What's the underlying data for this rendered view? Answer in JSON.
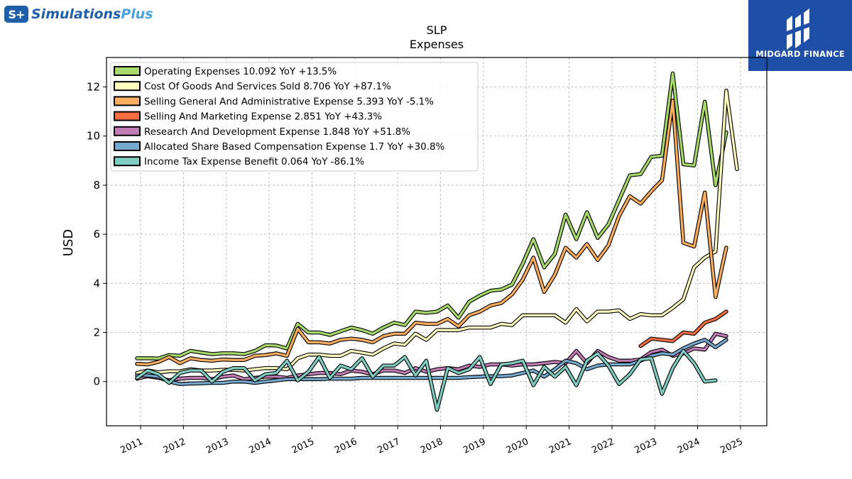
{
  "branding": {
    "left_logo_badge": "S+",
    "left_logo_text_a": "Simulations",
    "left_logo_text_b": "Plus",
    "right_logo_text": "MIDGARD FINANCE"
  },
  "chart_data": {
    "type": "line",
    "title": "SLP",
    "subtitle": "Expenses",
    "ylabel": "USD",
    "xlabel": "",
    "ylim": [
      -1.8,
      13.2
    ],
    "yticks": [
      0,
      2,
      4,
      6,
      8,
      10,
      12
    ],
    "xticks": [
      "2011",
      "2012",
      "2013",
      "2014",
      "2015",
      "2016",
      "2017",
      "2018",
      "2019",
      "2020",
      "2021",
      "2022",
      "2023",
      "2024",
      "2025"
    ],
    "grid": true,
    "legend_position": "top-left",
    "series": [
      {
        "name": "Operating Expenses",
        "legend": "Operating Expenses  10.092 YoY +13.5%",
        "color": "#a6d96a",
        "start_year": 2010.917,
        "values": [
          0.95,
          0.95,
          0.94,
          1.08,
          1.05,
          1.25,
          1.18,
          1.12,
          1.15,
          1.15,
          1.12,
          1.25,
          1.48,
          1.47,
          1.35,
          2.35,
          2.0,
          2.0,
          1.9,
          2.05,
          2.2,
          2.1,
          1.95,
          2.2,
          2.4,
          2.3,
          2.85,
          2.8,
          2.85,
          3.1,
          2.6,
          3.25,
          3.5,
          3.7,
          3.75,
          3.95,
          4.8,
          5.8,
          4.65,
          5.2,
          6.8,
          5.8,
          6.9,
          5.85,
          6.4,
          7.4,
          8.4,
          8.45,
          9.15,
          9.2,
          12.55,
          8.85,
          8.8,
          11.4,
          8.0,
          10.15
        ]
      },
      {
        "name": "Cost Of Goods And Services Sold",
        "legend": "Cost Of Goods And Services Sold  8.706 YoY +87.1%",
        "color": "#ffffbf",
        "start_year": 2010.917,
        "values": [
          0.35,
          0.45,
          0.38,
          0.42,
          0.42,
          0.5,
          0.45,
          0.45,
          0.48,
          0.48,
          0.45,
          0.5,
          0.55,
          0.55,
          0.5,
          0.95,
          1.1,
          1.1,
          1.05,
          1.05,
          1.25,
          1.18,
          1.1,
          1.35,
          1.55,
          1.5,
          1.95,
          1.7,
          2.1,
          2.1,
          2.1,
          2.2,
          2.2,
          2.2,
          2.35,
          2.3,
          2.7,
          2.7,
          2.7,
          2.7,
          2.4,
          2.95,
          2.45,
          2.85,
          2.85,
          2.9,
          2.55,
          2.75,
          2.7,
          2.7,
          3.0,
          3.35,
          4.65,
          5.05,
          5.3,
          11.85,
          8.65
        ]
      },
      {
        "name": "Selling General And Administrative Expense",
        "legend": "Selling General And Administrative Expense  5.393 YoY -5.1%",
        "color": "#fdae61",
        "start_year": 2010.917,
        "values": [
          0.72,
          0.7,
          0.8,
          1.0,
          0.75,
          0.95,
          0.88,
          0.85,
          0.9,
          0.88,
          0.88,
          1.05,
          1.08,
          1.15,
          1.05,
          2.15,
          1.6,
          1.6,
          1.55,
          1.7,
          1.75,
          1.7,
          1.6,
          1.85,
          1.95,
          1.95,
          2.4,
          2.35,
          2.35,
          2.55,
          2.25,
          2.7,
          2.85,
          3.1,
          3.2,
          3.55,
          4.15,
          5.05,
          3.65,
          4.35,
          5.45,
          5.05,
          5.6,
          4.95,
          5.55,
          6.75,
          7.55,
          7.25,
          7.75,
          8.2,
          11.45,
          5.65,
          5.5,
          7.7,
          3.45,
          5.45
        ]
      },
      {
        "name": "Selling And Marketing Expense",
        "legend": "Selling And Marketing Expense  2.851 YoY +43.3%",
        "color": "#f46d43",
        "start_year": 2022.667,
        "values": [
          1.45,
          1.75,
          1.7,
          1.65,
          2.0,
          1.95,
          2.4,
          2.55,
          2.85
        ]
      },
      {
        "name": "Research And Development Expense",
        "legend": "Research And Development Expense  1.848 YoY +51.8%",
        "color": "#c17bb5",
        "start_year": 2010.917,
        "values": [
          0.12,
          0.22,
          0.15,
          0.05,
          0.12,
          0.15,
          0.15,
          0.1,
          0.2,
          0.25,
          0.1,
          0.15,
          0.2,
          0.2,
          0.15,
          0.25,
          0.3,
          0.35,
          0.35,
          0.3,
          0.45,
          0.4,
          0.3,
          0.45,
          0.45,
          0.35,
          0.55,
          0.4,
          0.5,
          0.55,
          0.5,
          0.65,
          0.6,
          0.7,
          0.7,
          0.65,
          0.7,
          0.7,
          0.75,
          0.8,
          0.75,
          1.25,
          0.75,
          1.25,
          1.0,
          0.85,
          0.85,
          0.9,
          1.2,
          1.3,
          1.05,
          1.15,
          1.35,
          1.3,
          1.95,
          1.85
        ]
      },
      {
        "name": "Allocated Share Based Compensation Expense",
        "legend": "Allocated Share Based Compensation Expense  1.7 YoY +30.8%",
        "color": "#74a9cf",
        "start_year": 2010.917,
        "values": [
          0.25,
          0.25,
          0.2,
          0.0,
          -0.1,
          -0.08,
          -0.07,
          -0.05,
          -0.05,
          0.0,
          0.0,
          -0.05,
          0.0,
          0.05,
          0.1,
          0.1,
          0.1,
          0.1,
          0.12,
          0.12,
          0.12,
          0.15,
          0.15,
          0.15,
          0.15,
          0.15,
          0.15,
          0.15,
          0.15,
          0.15,
          0.15,
          0.18,
          0.2,
          0.22,
          0.22,
          0.25,
          0.35,
          0.45,
          0.2,
          0.5,
          0.85,
          0.75,
          0.5,
          0.65,
          0.7,
          0.7,
          0.7,
          0.85,
          1.05,
          1.15,
          1.1,
          1.35,
          1.55,
          1.7,
          1.4,
          1.7
        ]
      },
      {
        "name": "Income Tax Expense Benefit",
        "legend": "Income Tax Expense Benefit  0.064 YoY -86.1%",
        "color": "#80cdc1",
        "start_year": 2010.917,
        "values": [
          0.15,
          0.45,
          0.3,
          -0.05,
          0.35,
          0.45,
          0.45,
          0.0,
          0.4,
          0.55,
          0.55,
          0.05,
          0.3,
          0.35,
          0.85,
          0.05,
          0.4,
          1.0,
          0.15,
          0.65,
          0.5,
          0.95,
          0.2,
          0.65,
          0.65,
          1.0,
          0.25,
          0.85,
          -1.15,
          0.55,
          0.35,
          0.5,
          1.0,
          -0.1,
          0.7,
          0.75,
          0.85,
          -0.15,
          0.6,
          0.2,
          0.6,
          -0.15,
          0.85,
          1.15,
          0.65,
          -0.1,
          0.3,
          0.9,
          0.95,
          -0.5,
          0.55,
          1.25,
          0.75,
          0.0,
          0.05
        ]
      }
    ]
  }
}
